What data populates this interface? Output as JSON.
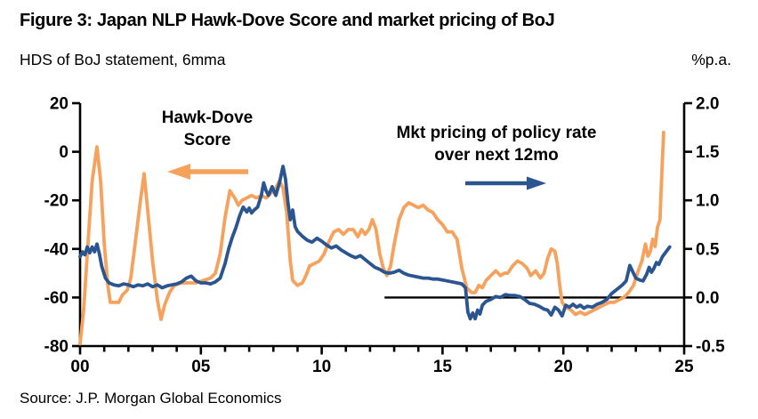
{
  "figure": {
    "title": "Figure 3: Japan NLP Hawk-Dove Score and market pricing of BoJ",
    "subtitle_left": "HDS of BoJ statement, 6mma",
    "subtitle_right": "%p.a.",
    "source": "Source: J.P. Morgan Global Economics"
  },
  "annotations": {
    "hds_line1": "Hawk-Dove",
    "hds_line2": "Score",
    "mkt_line1": "Mkt pricing of policy rate",
    "mkt_line2": "over next 12mo"
  },
  "colors": {
    "hds_orange": "#F6A15C",
    "mkt_blue": "#2A5590",
    "axis_black": "#000000",
    "background": "#FFFFFF"
  },
  "chart_data": {
    "type": "line",
    "title": "Figure 3: Japan NLP Hawk-Dove Score and market pricing of BoJ",
    "x_unit": "years since 2000",
    "grid": false,
    "legend_position": "in-plot text annotations with arrows",
    "x_axis": {
      "tick_labels": [
        "00",
        "05",
        "10",
        "15",
        "20",
        "25"
      ],
      "tick_values": [
        0,
        5,
        10,
        15,
        20,
        25
      ],
      "minor_tick_every_years": 1,
      "range": [
        0,
        25
      ]
    },
    "y_axis_left": {
      "label": "HDS of BoJ statement, 6mma",
      "tick_labels": [
        "20",
        "0",
        "-20",
        "-40",
        "-60",
        "-80"
      ],
      "tick_values": [
        20,
        0,
        -20,
        -40,
        -60,
        -80
      ],
      "range": [
        -80,
        20
      ]
    },
    "y_axis_right": {
      "label": "%p.a.",
      "tick_labels": [
        "2.0",
        "1.5",
        "1.0",
        "0.5",
        "0.0",
        "-0.5"
      ],
      "tick_values": [
        2.0,
        1.5,
        1.0,
        0.5,
        0.0,
        -0.5
      ],
      "range": [
        -0.5,
        2.0
      ]
    },
    "zero_line": {
      "axis": "right",
      "value": 0.0,
      "x_start": 12.6,
      "x_end": 25
    },
    "series": [
      {
        "name": "Hawk-Dove Score",
        "axis": "left",
        "color": "#F6A15C",
        "points": [
          [
            0.0,
            -79
          ],
          [
            0.15,
            -65
          ],
          [
            0.3,
            -42
          ],
          [
            0.5,
            -12
          ],
          [
            0.7,
            2
          ],
          [
            0.85,
            -12
          ],
          [
            1.0,
            -38
          ],
          [
            1.15,
            -55
          ],
          [
            1.25,
            -62
          ],
          [
            1.45,
            -62
          ],
          [
            1.6,
            -62
          ],
          [
            1.75,
            -59
          ],
          [
            1.95,
            -57
          ],
          [
            2.1,
            -52
          ],
          [
            2.3,
            -36
          ],
          [
            2.5,
            -20
          ],
          [
            2.65,
            -9
          ],
          [
            2.8,
            -24
          ],
          [
            3.0,
            -45
          ],
          [
            3.2,
            -61
          ],
          [
            3.35,
            -69
          ],
          [
            3.5,
            -63
          ],
          [
            3.7,
            -58
          ],
          [
            3.9,
            -55
          ],
          [
            4.2,
            -54
          ],
          [
            4.5,
            -54
          ],
          [
            4.8,
            -54
          ],
          [
            5.1,
            -53
          ],
          [
            5.4,
            -52
          ],
          [
            5.6,
            -50
          ],
          [
            5.8,
            -42
          ],
          [
            6.0,
            -27
          ],
          [
            6.2,
            -16
          ],
          [
            6.4,
            -19
          ],
          [
            6.55,
            -22
          ],
          [
            6.7,
            -20
          ],
          [
            6.9,
            -19
          ],
          [
            7.1,
            -18
          ],
          [
            7.3,
            -19
          ],
          [
            7.5,
            -18
          ],
          [
            7.7,
            -19
          ],
          [
            7.9,
            -17
          ],
          [
            8.1,
            -15
          ],
          [
            8.25,
            -12
          ],
          [
            8.4,
            -15
          ],
          [
            8.55,
            -25
          ],
          [
            8.7,
            -45
          ],
          [
            8.8,
            -53
          ],
          [
            9.0,
            -55
          ],
          [
            9.2,
            -54
          ],
          [
            9.35,
            -51
          ],
          [
            9.5,
            -47
          ],
          [
            9.7,
            -46
          ],
          [
            9.9,
            -45
          ],
          [
            10.1,
            -42
          ],
          [
            10.3,
            -37
          ],
          [
            10.5,
            -33
          ],
          [
            10.7,
            -32
          ],
          [
            10.9,
            -34
          ],
          [
            11.1,
            -32
          ],
          [
            11.3,
            -32
          ],
          [
            11.5,
            -35
          ],
          [
            11.65,
            -32
          ],
          [
            11.8,
            -34
          ],
          [
            11.95,
            -32
          ],
          [
            12.1,
            -28
          ],
          [
            12.25,
            -32
          ],
          [
            12.4,
            -42
          ],
          [
            12.55,
            -48
          ],
          [
            12.7,
            -51
          ],
          [
            12.85,
            -47
          ],
          [
            13.0,
            -38
          ],
          [
            13.2,
            -28
          ],
          [
            13.4,
            -23
          ],
          [
            13.6,
            -21
          ],
          [
            13.8,
            -22
          ],
          [
            14.0,
            -23
          ],
          [
            14.2,
            -22
          ],
          [
            14.4,
            -24
          ],
          [
            14.6,
            -25
          ],
          [
            14.8,
            -28
          ],
          [
            15.0,
            -30
          ],
          [
            15.2,
            -33
          ],
          [
            15.4,
            -33
          ],
          [
            15.6,
            -36
          ],
          [
            15.8,
            -48
          ],
          [
            16.0,
            -56
          ],
          [
            16.2,
            -58
          ],
          [
            16.35,
            -58
          ],
          [
            16.5,
            -55
          ],
          [
            16.65,
            -56
          ],
          [
            16.8,
            -53
          ],
          [
            17.0,
            -51
          ],
          [
            17.2,
            -49
          ],
          [
            17.4,
            -51
          ],
          [
            17.55,
            -50
          ],
          [
            17.7,
            -50
          ],
          [
            17.9,
            -47
          ],
          [
            18.1,
            -45
          ],
          [
            18.3,
            -46
          ],
          [
            18.5,
            -48
          ],
          [
            18.65,
            -51
          ],
          [
            18.85,
            -49
          ],
          [
            19.05,
            -52
          ],
          [
            19.2,
            -50
          ],
          [
            19.35,
            -44
          ],
          [
            19.5,
            -40
          ],
          [
            19.65,
            -41
          ],
          [
            19.75,
            -46
          ],
          [
            19.85,
            -55
          ],
          [
            19.95,
            -62
          ],
          [
            20.1,
            -64
          ],
          [
            20.3,
            -65
          ],
          [
            20.5,
            -67
          ],
          [
            20.7,
            -66
          ],
          [
            20.9,
            -67
          ],
          [
            21.1,
            -66
          ],
          [
            21.3,
            -65
          ],
          [
            21.5,
            -64
          ],
          [
            21.7,
            -63
          ],
          [
            21.9,
            -62
          ],
          [
            22.1,
            -62
          ],
          [
            22.3,
            -61
          ],
          [
            22.5,
            -60
          ],
          [
            22.7,
            -58
          ],
          [
            22.9,
            -55
          ],
          [
            23.1,
            -49
          ],
          [
            23.25,
            -45
          ],
          [
            23.4,
            -38
          ],
          [
            23.5,
            -43
          ],
          [
            23.6,
            -41
          ],
          [
            23.7,
            -36
          ],
          [
            23.8,
            -39
          ],
          [
            23.9,
            -31
          ],
          [
            24.0,
            -28
          ],
          [
            24.05,
            -15
          ],
          [
            24.15,
            8
          ]
        ]
      },
      {
        "name": "Mkt pricing of policy rate over next 12mo",
        "axis": "right",
        "color": "#2A5590",
        "points": [
          [
            0.0,
            0.42
          ],
          [
            0.1,
            0.47
          ],
          [
            0.2,
            0.44
          ],
          [
            0.3,
            0.52
          ],
          [
            0.4,
            0.46
          ],
          [
            0.5,
            0.52
          ],
          [
            0.6,
            0.47
          ],
          [
            0.7,
            0.55
          ],
          [
            0.8,
            0.45
          ],
          [
            0.9,
            0.32
          ],
          [
            1.05,
            0.2
          ],
          [
            1.2,
            0.15
          ],
          [
            1.4,
            0.13
          ],
          [
            1.6,
            0.12
          ],
          [
            1.8,
            0.14
          ],
          [
            2.0,
            0.13
          ],
          [
            2.2,
            0.11
          ],
          [
            2.4,
            0.13
          ],
          [
            2.6,
            0.12
          ],
          [
            2.8,
            0.14
          ],
          [
            3.0,
            0.11
          ],
          [
            3.2,
            0.13
          ],
          [
            3.4,
            0.1
          ],
          [
            3.6,
            0.12
          ],
          [
            3.8,
            0.13
          ],
          [
            4.0,
            0.14
          ],
          [
            4.2,
            0.16
          ],
          [
            4.4,
            0.2
          ],
          [
            4.6,
            0.22
          ],
          [
            4.8,
            0.17
          ],
          [
            5.0,
            0.15
          ],
          [
            5.2,
            0.15
          ],
          [
            5.4,
            0.14
          ],
          [
            5.6,
            0.16
          ],
          [
            5.8,
            0.2
          ],
          [
            6.0,
            0.35
          ],
          [
            6.15,
            0.5
          ],
          [
            6.3,
            0.62
          ],
          [
            6.45,
            0.72
          ],
          [
            6.6,
            0.84
          ],
          [
            6.75,
            0.93
          ],
          [
            6.9,
            0.88
          ],
          [
            7.0,
            0.92
          ],
          [
            7.1,
            0.87
          ],
          [
            7.2,
            0.9
          ],
          [
            7.35,
            0.93
          ],
          [
            7.5,
            1.05
          ],
          [
            7.6,
            1.18
          ],
          [
            7.7,
            1.1
          ],
          [
            7.8,
            1.05
          ],
          [
            7.95,
            1.14
          ],
          [
            8.1,
            1.05
          ],
          [
            8.25,
            1.18
          ],
          [
            8.4,
            1.35
          ],
          [
            8.5,
            1.22
          ],
          [
            8.6,
            0.98
          ],
          [
            8.7,
            0.8
          ],
          [
            8.8,
            0.9
          ],
          [
            8.9,
            0.73
          ],
          [
            9.0,
            0.68
          ],
          [
            9.2,
            0.63
          ],
          [
            9.4,
            0.59
          ],
          [
            9.6,
            0.57
          ],
          [
            9.8,
            0.61
          ],
          [
            10.0,
            0.58
          ],
          [
            10.2,
            0.54
          ],
          [
            10.4,
            0.51
          ],
          [
            10.6,
            0.53
          ],
          [
            10.8,
            0.49
          ],
          [
            11.0,
            0.46
          ],
          [
            11.2,
            0.43
          ],
          [
            11.4,
            0.41
          ],
          [
            11.6,
            0.43
          ],
          [
            11.8,
            0.39
          ],
          [
            12.0,
            0.35
          ],
          [
            12.2,
            0.31
          ],
          [
            12.4,
            0.29
          ],
          [
            12.6,
            0.26
          ],
          [
            12.8,
            0.25
          ],
          [
            13.0,
            0.26
          ],
          [
            13.2,
            0.28
          ],
          [
            13.4,
            0.25
          ],
          [
            13.6,
            0.23
          ],
          [
            13.8,
            0.22
          ],
          [
            14.0,
            0.21
          ],
          [
            14.2,
            0.2
          ],
          [
            14.4,
            0.2
          ],
          [
            14.6,
            0.19
          ],
          [
            14.8,
            0.19
          ],
          [
            15.0,
            0.18
          ],
          [
            15.2,
            0.17
          ],
          [
            15.4,
            0.16
          ],
          [
            15.6,
            0.15
          ],
          [
            15.8,
            0.14
          ],
          [
            15.95,
            0.1
          ],
          [
            16.05,
            -0.15
          ],
          [
            16.15,
            -0.22
          ],
          [
            16.25,
            -0.16
          ],
          [
            16.35,
            -0.22
          ],
          [
            16.45,
            -0.13
          ],
          [
            16.55,
            -0.17
          ],
          [
            16.65,
            -0.08
          ],
          [
            16.8,
            -0.04
          ],
          [
            17.0,
            -0.02
          ],
          [
            17.2,
            0.01
          ],
          [
            17.4,
            0.0
          ],
          [
            17.6,
            0.03
          ],
          [
            17.8,
            0.02
          ],
          [
            18.0,
            0.02
          ],
          [
            18.2,
            0.01
          ],
          [
            18.4,
            -0.02
          ],
          [
            18.6,
            -0.06
          ],
          [
            18.8,
            -0.07
          ],
          [
            19.0,
            -0.09
          ],
          [
            19.2,
            -0.12
          ],
          [
            19.35,
            -0.13
          ],
          [
            19.5,
            -0.18
          ],
          [
            19.65,
            -0.1
          ],
          [
            19.8,
            -0.13
          ],
          [
            19.95,
            -0.19
          ],
          [
            20.1,
            -0.08
          ],
          [
            20.25,
            -0.1
          ],
          [
            20.4,
            -0.07
          ],
          [
            20.55,
            -0.1
          ],
          [
            20.7,
            -0.08
          ],
          [
            20.85,
            -0.11
          ],
          [
            21.0,
            -0.09
          ],
          [
            21.2,
            -0.1
          ],
          [
            21.4,
            -0.07
          ],
          [
            21.6,
            -0.05
          ],
          [
            21.8,
            -0.02
          ],
          [
            22.0,
            0.04
          ],
          [
            22.15,
            0.07
          ],
          [
            22.3,
            0.1
          ],
          [
            22.45,
            0.13
          ],
          [
            22.6,
            0.17
          ],
          [
            22.75,
            0.33
          ],
          [
            22.9,
            0.25
          ],
          [
            23.0,
            0.2
          ],
          [
            23.15,
            0.18
          ],
          [
            23.3,
            0.17
          ],
          [
            23.45,
            0.24
          ],
          [
            23.55,
            0.31
          ],
          [
            23.65,
            0.26
          ],
          [
            23.75,
            0.3
          ],
          [
            23.85,
            0.36
          ],
          [
            23.95,
            0.34
          ],
          [
            24.1,
            0.42
          ],
          [
            24.25,
            0.47
          ],
          [
            24.4,
            0.52
          ]
        ]
      }
    ]
  }
}
